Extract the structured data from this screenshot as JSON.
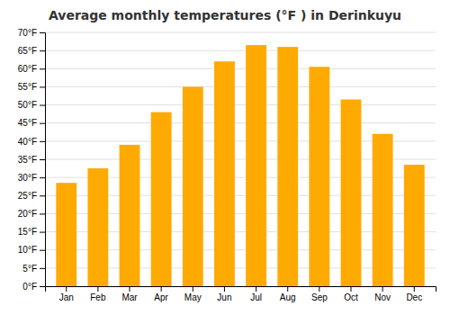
{
  "chart_data": {
    "type": "bar",
    "title": "Average monthly temperatures (°F ) in Derinkuyu",
    "categories": [
      "Jan",
      "Feb",
      "Mar",
      "Apr",
      "May",
      "Jun",
      "Jul",
      "Aug",
      "Sep",
      "Oct",
      "Nov",
      "Dec"
    ],
    "values": [
      28.5,
      32.5,
      39.0,
      48.0,
      55.0,
      62.0,
      66.5,
      66.0,
      60.5,
      51.5,
      42.0,
      33.5
    ],
    "color": "#FFAA00",
    "ylim": [
      0,
      70
    ],
    "yticks": [
      {
        "value": 0,
        "label": "0°F"
      },
      {
        "value": 5,
        "label": "5°F"
      },
      {
        "value": 10,
        "label": "10°F"
      },
      {
        "value": 15,
        "label": "15°F"
      },
      {
        "value": 20,
        "label": "20°F"
      },
      {
        "value": 25,
        "label": "25°F"
      },
      {
        "value": 30,
        "label": "30°F"
      },
      {
        "value": 35,
        "label": "35°F"
      },
      {
        "value": 40,
        "label": "40°F"
      },
      {
        "value": 45,
        "label": "45°F"
      },
      {
        "value": 50,
        "label": "50°F"
      },
      {
        "value": 55,
        "label": "55°F"
      },
      {
        "value": 60,
        "label": "60°F"
      },
      {
        "value": 65,
        "label": "65°F"
      },
      {
        "value": 70,
        "label": "70°F"
      }
    ],
    "grid": true
  }
}
